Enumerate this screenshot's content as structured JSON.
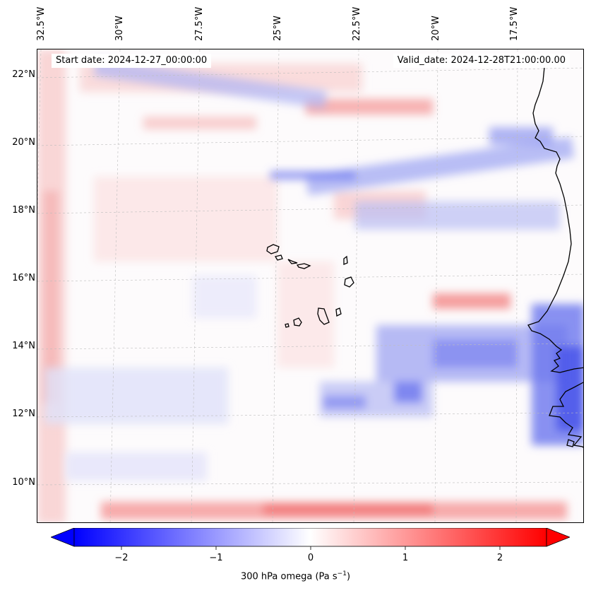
{
  "map": {
    "start_date": "Start date: 2024-12-27_00:00:00",
    "valid_date": "Valid_date: 2024-12-28T21:00:00.00",
    "field": "300 hPa omega",
    "lon_labels": [
      "32.5°W",
      "30°W",
      "27.5°W",
      "25°W",
      "22.5°W",
      "20°W",
      "17.5°W"
    ],
    "lat_labels": [
      "22°N",
      "20°N",
      "18°N",
      "16°N",
      "14°N",
      "12°N",
      "10°N"
    ],
    "extent": {
      "lon_min": -33.0,
      "lon_max": -15.7,
      "lat_min": 8.9,
      "lat_max": 22.8
    },
    "colormap": "bwr",
    "colors": {
      "negative": "#0000ff",
      "zero": "#ffffff",
      "positive": "#ff0000",
      "coastline": "#000000"
    }
  },
  "colorbar": {
    "label_main": "300 hPa omega (Pa s",
    "label_sup": "−1",
    "label_end": ")",
    "tick_labels": [
      "−2",
      "−1",
      "0",
      "1",
      "2"
    ],
    "ticks": [
      -2,
      -1,
      0,
      1,
      2
    ],
    "range": [
      -2.6,
      2.6
    ],
    "extend": "both"
  }
}
